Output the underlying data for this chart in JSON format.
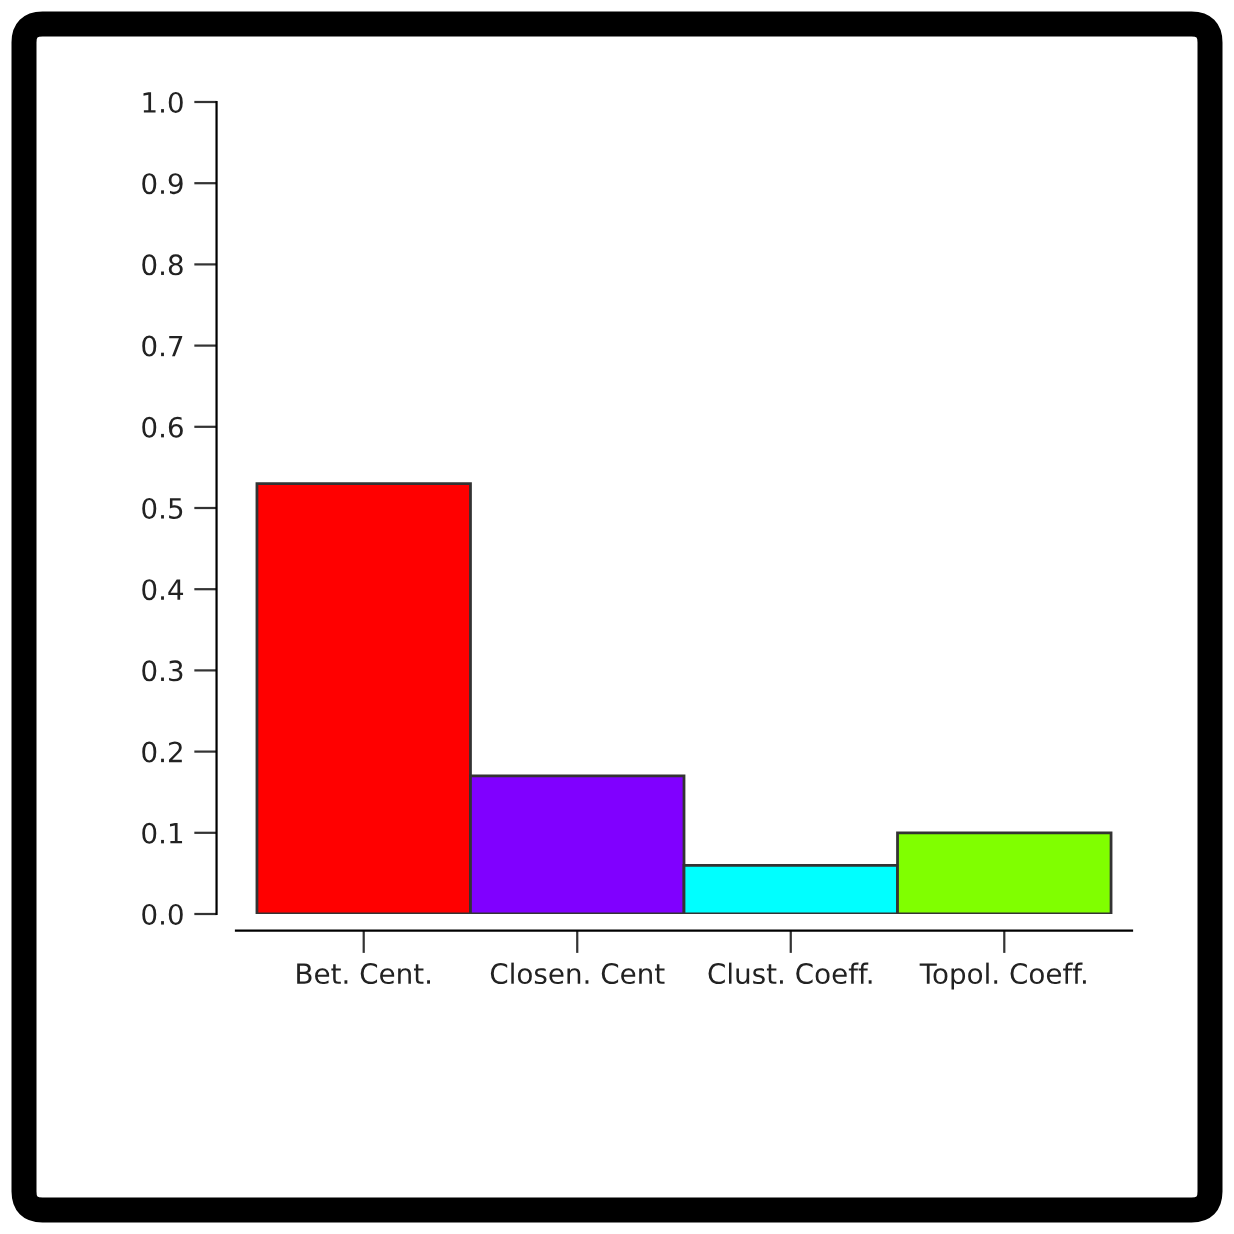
{
  "chart_data": {
    "type": "bar",
    "categories": [
      "Bet. Cent.",
      "Closen. Cent",
      "Clust. Coeff.",
      "Topol. Coeff."
    ],
    "values": [
      0.53,
      0.17,
      0.06,
      0.1
    ],
    "colors": [
      "#ff0000",
      "#8000ff",
      "#00ffff",
      "#80ff00"
    ],
    "ylim": [
      0,
      1
    ],
    "yticks": [
      {
        "value": 0,
        "label": "0.0"
      },
      0.1,
      0.2,
      0.3,
      0.4,
      0.5,
      0.6,
      0.7,
      0.8,
      0.9,
      {
        "value": 1,
        "label": "1.0"
      }
    ],
    "grid": false
  }
}
